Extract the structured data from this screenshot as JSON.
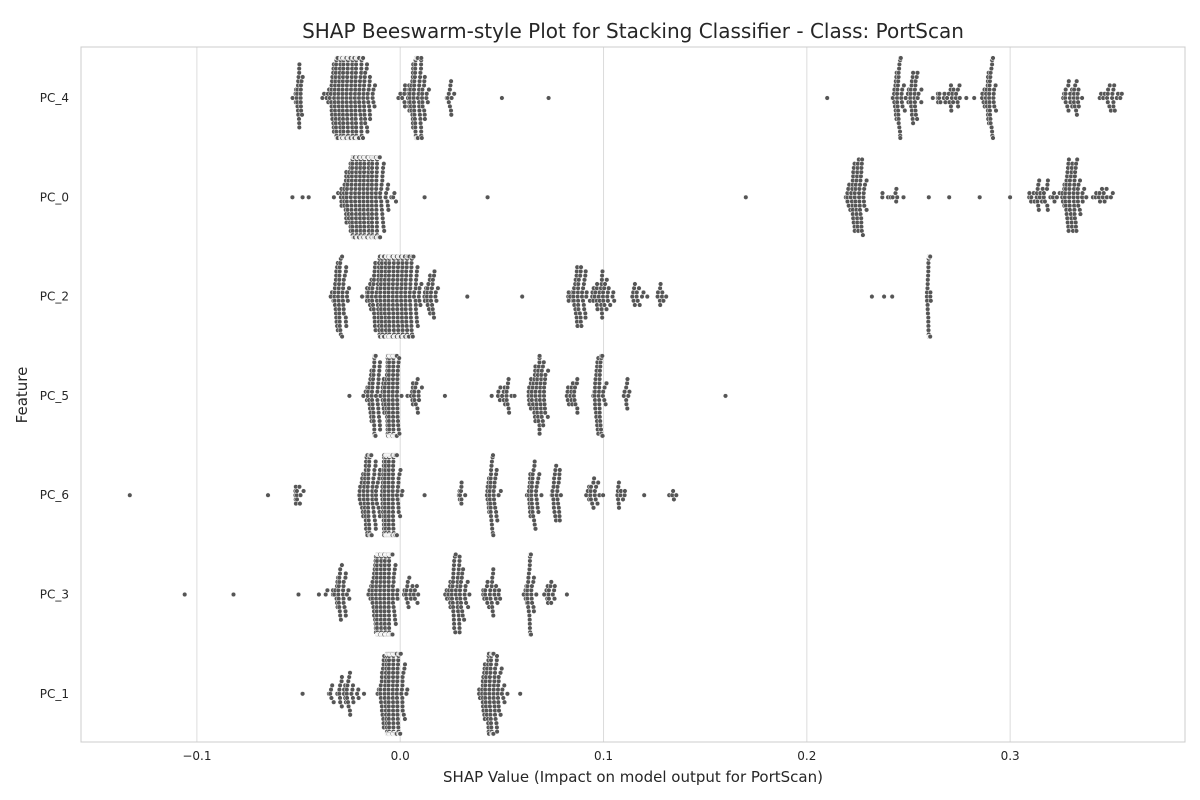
{
  "chart_data": {
    "type": "scatter",
    "subtype": "beeswarm",
    "title": "SHAP Beeswarm-style Plot for Stacking Classifier - Class: PortScan",
    "xlabel": "SHAP Value (Impact on model output for PortScan)",
    "ylabel": "Feature",
    "xlim": [
      -0.157,
      0.386
    ],
    "xticks": [
      -0.1,
      0.0,
      0.1,
      0.2,
      0.3
    ],
    "xtick_labels": [
      "−0.1",
      "0.0",
      "0.1",
      "0.2",
      "0.3"
    ],
    "grid": "vertical",
    "categories": [
      "PC_4",
      "PC_0",
      "PC_2",
      "PC_5",
      "PC_6",
      "PC_3",
      "PC_1"
    ],
    "point_color": "#555555",
    "series": [
      {
        "feature": "PC_4",
        "clusters": [
          {
            "center": -0.05,
            "spread": 0.003,
            "count": 30
          },
          {
            "center": -0.025,
            "spread": 0.012,
            "count": 360
          },
          {
            "center": 0.008,
            "spread": 0.007,
            "count": 110
          },
          {
            "center": 0.025,
            "spread": 0.004,
            "count": 12
          },
          {
            "center": 0.245,
            "spread": 0.003,
            "count": 40
          },
          {
            "center": 0.252,
            "spread": 0.006,
            "count": 35
          },
          {
            "center": 0.27,
            "spread": 0.012,
            "count": 30
          },
          {
            "center": 0.29,
            "spread": 0.004,
            "count": 50
          },
          {
            "center": 0.33,
            "spread": 0.006,
            "count": 30
          },
          {
            "center": 0.35,
            "spread": 0.006,
            "count": 22
          }
        ],
        "outliers": [
          0.05,
          0.073,
          0.21
        ]
      },
      {
        "feature": "PC_0",
        "clusters": [
          {
            "center": -0.017,
            "spread": 0.012,
            "count": 420
          },
          {
            "center": 0.225,
            "spread": 0.006,
            "count": 70
          },
          {
            "center": 0.24,
            "spread": 0.01,
            "count": 10
          },
          {
            "center": 0.315,
            "spread": 0.008,
            "count": 30
          },
          {
            "center": 0.33,
            "spread": 0.008,
            "count": 75
          },
          {
            "center": 0.345,
            "spread": 0.006,
            "count": 14
          }
        ],
        "outliers": [
          -0.053,
          -0.048,
          -0.045,
          0.012,
          0.043,
          0.17,
          0.26,
          0.27,
          0.285,
          0.3
        ]
      },
      {
        "feature": "PC_2",
        "clusters": [
          {
            "center": -0.03,
            "spread": 0.005,
            "count": 60
          },
          {
            "center": -0.003,
            "spread": 0.014,
            "count": 450
          },
          {
            "center": 0.015,
            "spread": 0.005,
            "count": 25
          },
          {
            "center": 0.088,
            "spread": 0.005,
            "count": 50
          },
          {
            "center": 0.1,
            "spread": 0.006,
            "count": 40
          },
          {
            "center": 0.117,
            "spread": 0.005,
            "count": 14
          },
          {
            "center": 0.128,
            "spread": 0.003,
            "count": 10
          },
          {
            "center": 0.26,
            "spread": 0.001,
            "count": 55
          }
        ],
        "outliers": [
          0.033,
          0.06,
          0.232,
          0.238,
          0.242
        ]
      },
      {
        "feature": "PC_5",
        "clusters": [
          {
            "center": -0.012,
            "spread": 0.005,
            "count": 70
          },
          {
            "center": -0.004,
            "spread": 0.004,
            "count": 220
          },
          {
            "center": 0.007,
            "spread": 0.004,
            "count": 20
          },
          {
            "center": 0.052,
            "spread": 0.005,
            "count": 20
          },
          {
            "center": 0.068,
            "spread": 0.006,
            "count": 70
          },
          {
            "center": 0.085,
            "spread": 0.005,
            "count": 20
          },
          {
            "center": 0.098,
            "spread": 0.004,
            "count": 50
          },
          {
            "center": 0.112,
            "spread": 0.003,
            "count": 10
          }
        ],
        "outliers": [
          -0.025,
          0.022,
          0.045,
          0.16
        ]
      },
      {
        "feature": "PC_6",
        "clusters": [
          {
            "center": -0.05,
            "spread": 0.004,
            "count": 12
          },
          {
            "center": -0.015,
            "spread": 0.006,
            "count": 90
          },
          {
            "center": -0.005,
            "spread": 0.005,
            "count": 250
          },
          {
            "center": 0.03,
            "spread": 0.002,
            "count": 10
          },
          {
            "center": 0.045,
            "spread": 0.004,
            "count": 45
          },
          {
            "center": 0.066,
            "spread": 0.004,
            "count": 40
          },
          {
            "center": 0.077,
            "spread": 0.003,
            "count": 30
          },
          {
            "center": 0.095,
            "spread": 0.004,
            "count": 20
          },
          {
            "center": 0.108,
            "spread": 0.004,
            "count": 12
          },
          {
            "center": 0.135,
            "spread": 0.004,
            "count": 5
          }
        ],
        "outliers": [
          -0.133,
          -0.065,
          0.012,
          0.12
        ]
      },
      {
        "feature": "PC_3",
        "clusters": [
          {
            "center": -0.03,
            "spread": 0.006,
            "count": 40
          },
          {
            "center": -0.008,
            "spread": 0.007,
            "count": 300
          },
          {
            "center": 0.005,
            "spread": 0.004,
            "count": 20
          },
          {
            "center": 0.028,
            "spread": 0.006,
            "count": 70
          },
          {
            "center": 0.045,
            "spread": 0.005,
            "count": 30
          },
          {
            "center": 0.064,
            "spread": 0.003,
            "count": 40
          },
          {
            "center": 0.074,
            "spread": 0.004,
            "count": 15
          }
        ],
        "outliers": [
          -0.106,
          -0.082,
          -0.05,
          -0.04,
          0.082
        ]
      },
      {
        "feature": "PC_1",
        "clusters": [
          {
            "center": -0.027,
            "spread": 0.008,
            "count": 40
          },
          {
            "center": -0.004,
            "spread": 0.006,
            "count": 280
          },
          {
            "center": 0.045,
            "spread": 0.007,
            "count": 110
          }
        ],
        "outliers": [
          -0.048,
          0.059
        ]
      }
    ]
  }
}
